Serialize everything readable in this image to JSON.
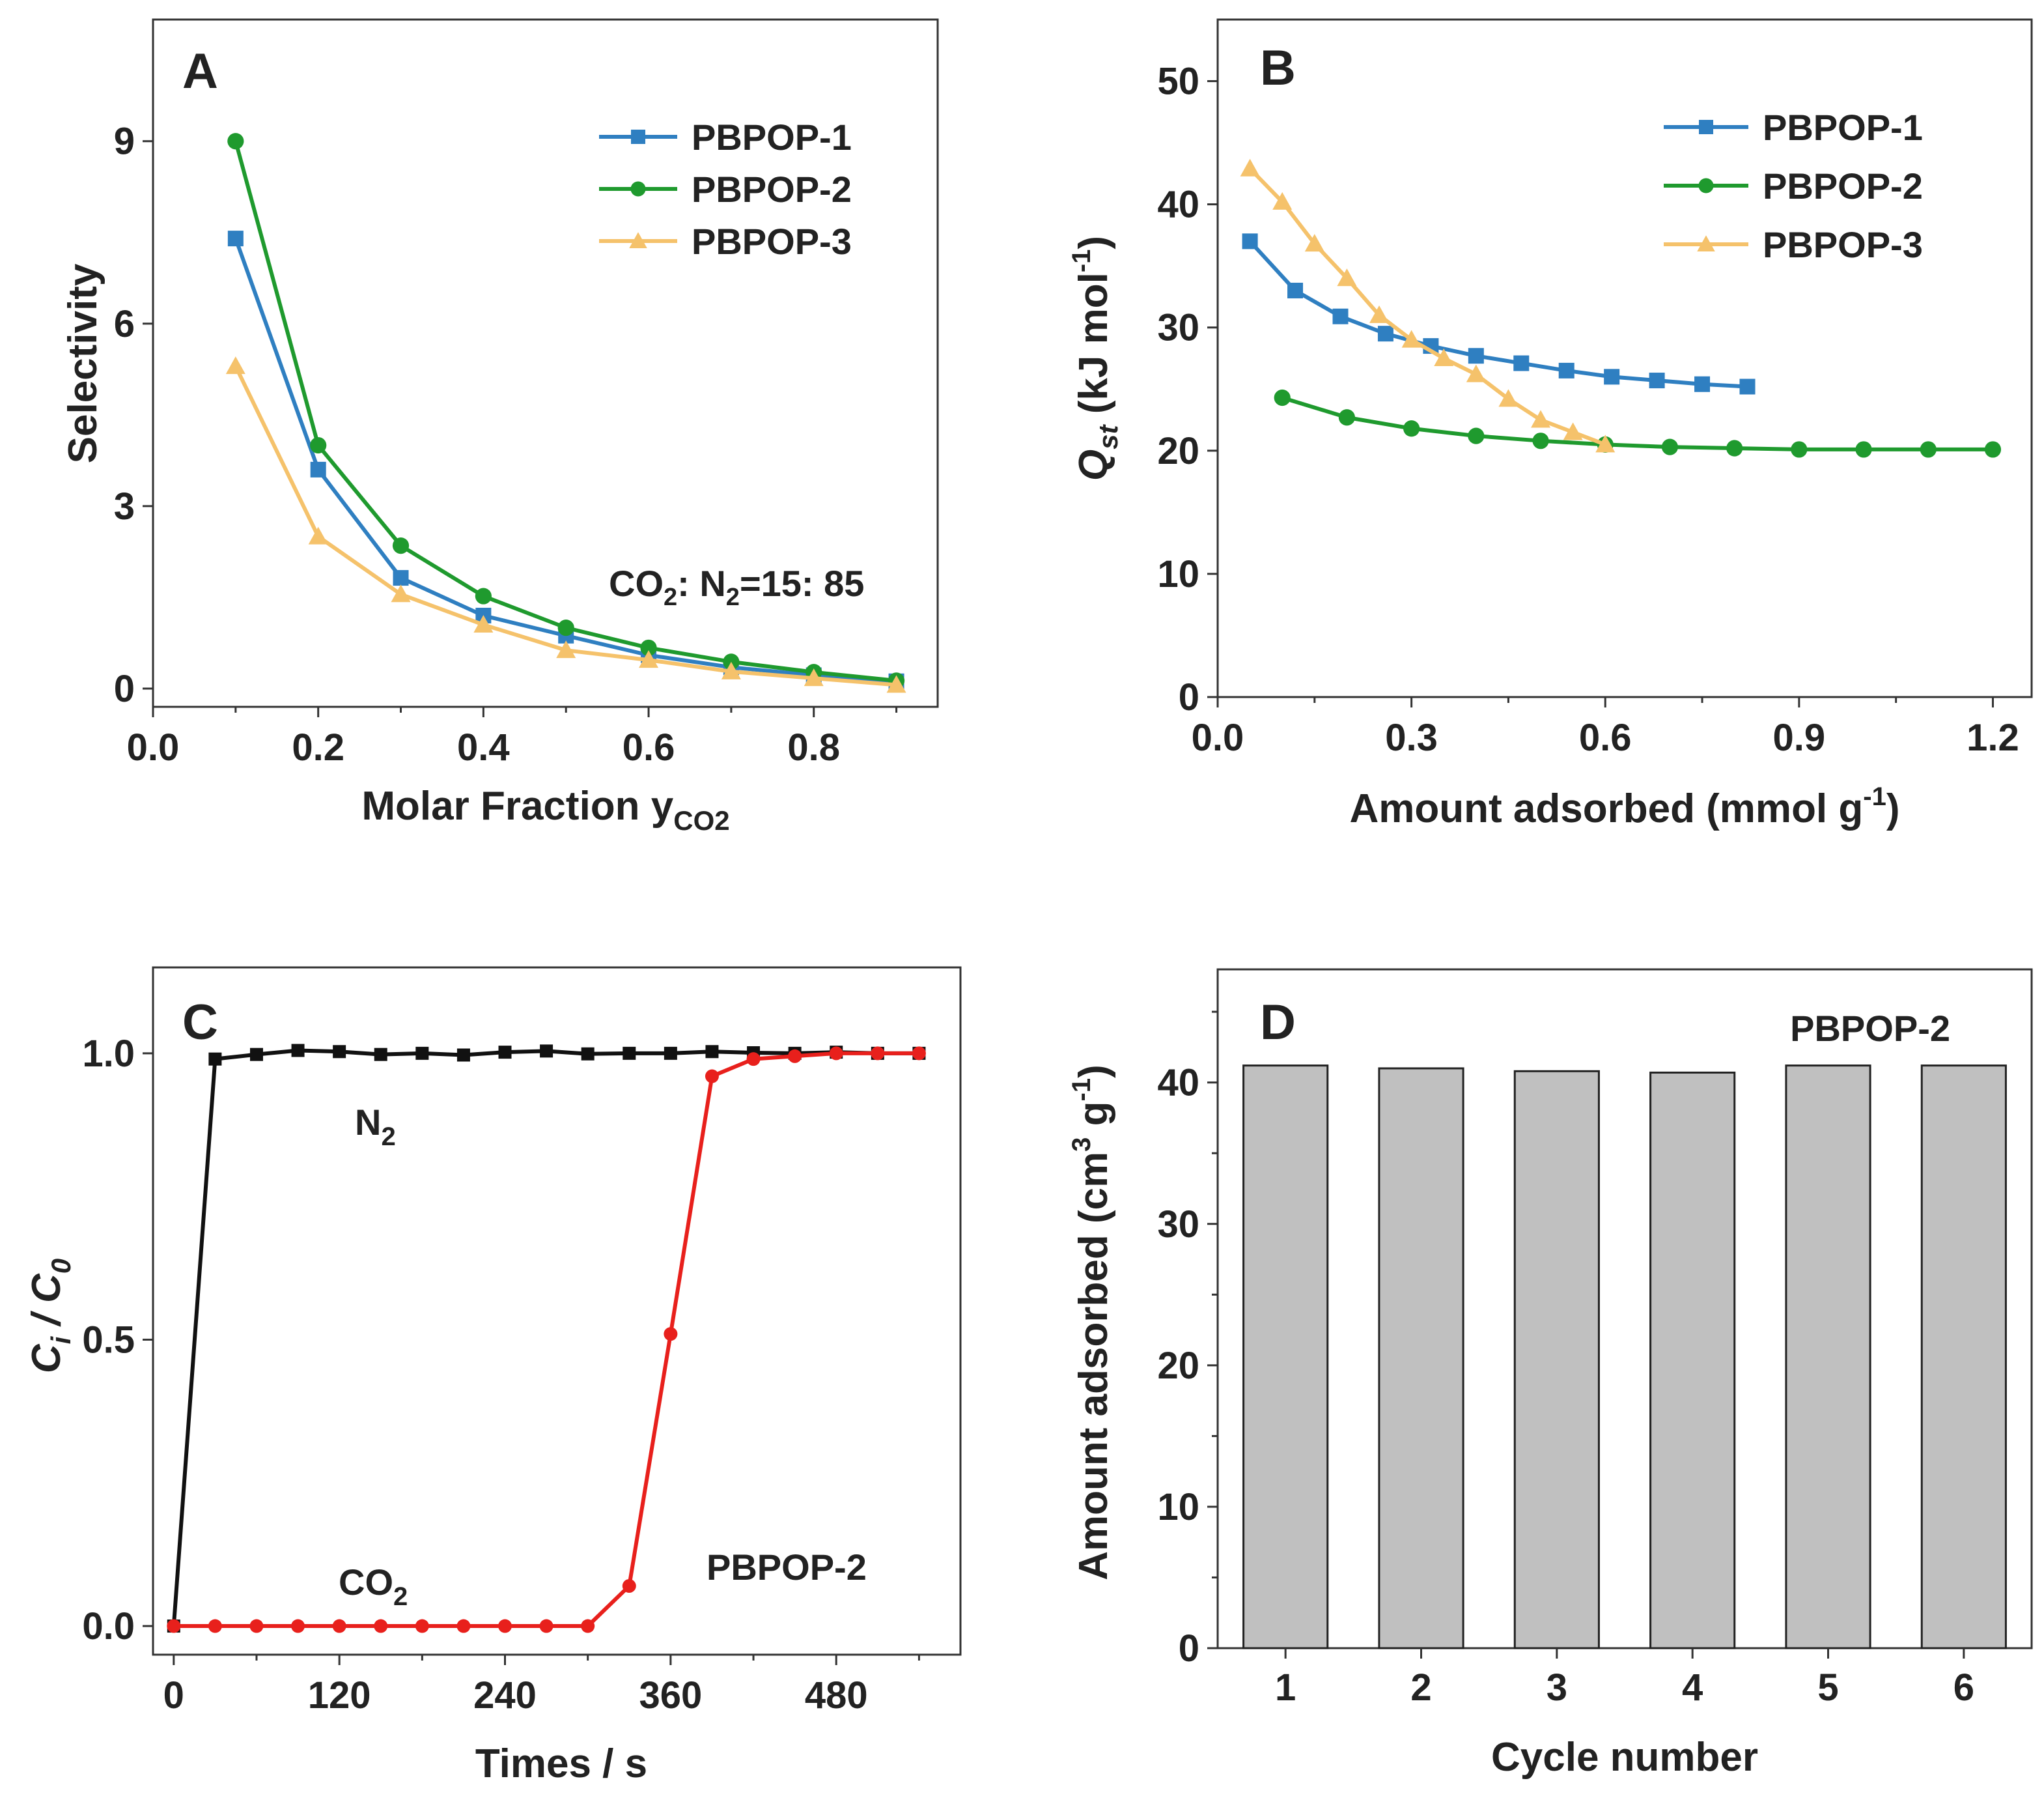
{
  "chart_data": [
    {
      "panel": "A",
      "type": "line",
      "xlabel": "Molar Fraction y",
      "xlabel_sub": "CO2",
      "ylabel": "Selectivity",
      "xlim": [
        0.0,
        0.95
      ],
      "ylim": [
        -0.3,
        11
      ],
      "xticks": [
        "0.0",
        "0.2",
        "0.4",
        "0.6",
        "0.8"
      ],
      "yticks": [
        "0",
        "3",
        "6",
        "9"
      ],
      "legend_position": "top-right",
      "annotation": {
        "p1": "CO",
        "s1": "2",
        "p2": ": N",
        "s2": "2",
        "p3": "=15: 85"
      },
      "x": [
        0.1,
        0.2,
        0.3,
        0.4,
        0.5,
        0.6,
        0.7,
        0.8,
        0.9
      ],
      "series": [
        {
          "name": "PBPOP-1",
          "color": "#2f7fc1",
          "marker": "square",
          "values": [
            7.4,
            3.6,
            1.82,
            1.2,
            0.87,
            0.55,
            0.35,
            0.22,
            0.12
          ]
        },
        {
          "name": "PBPOP-2",
          "color": "#1f9a2e",
          "marker": "circle",
          "values": [
            9.0,
            4.0,
            2.35,
            1.52,
            1.0,
            0.67,
            0.44,
            0.27,
            0.13
          ]
        },
        {
          "name": "PBPOP-3",
          "color": "#f5c26b",
          "marker": "triangle",
          "values": [
            5.3,
            2.5,
            1.55,
            1.05,
            0.63,
            0.47,
            0.28,
            0.17,
            0.06
          ]
        }
      ]
    },
    {
      "panel": "B",
      "type": "line",
      "xlabel": "Amount adsorbed (mmol g",
      "xlabel_sup": "-1",
      "xlabel_end": ")",
      "ylabel_main": "Q",
      "ylabel_sub": "st",
      "ylabel_rest": " (kJ mol",
      "ylabel_sup": "-1",
      "ylabel_end": ")",
      "xlim": [
        0.0,
        1.26
      ],
      "ylim": [
        0,
        55
      ],
      "xticks": [
        "0.0",
        "0.3",
        "0.6",
        "0.9",
        "1.2"
      ],
      "yticks": [
        "0",
        "10",
        "20",
        "30",
        "40",
        "50"
      ],
      "legend_position": "top-right",
      "series": [
        {
          "name": "PBPOP-1",
          "color": "#2f7fc1",
          "marker": "square",
          "x": [
            0.05,
            0.12,
            0.19,
            0.26,
            0.33,
            0.4,
            0.47,
            0.54,
            0.61,
            0.68,
            0.75,
            0.82
          ],
          "values": [
            37.0,
            33.0,
            30.9,
            29.5,
            28.5,
            27.7,
            27.1,
            26.5,
            26.0,
            25.7,
            25.4,
            25.2
          ]
        },
        {
          "name": "PBPOP-2",
          "color": "#1f9a2e",
          "marker": "circle",
          "x": [
            0.1,
            0.2,
            0.3,
            0.4,
            0.5,
            0.6,
            0.7,
            0.8,
            0.9,
            1.0,
            1.1,
            1.2
          ],
          "values": [
            24.3,
            22.7,
            21.8,
            21.2,
            20.8,
            20.5,
            20.3,
            20.2,
            20.1,
            20.1,
            20.1,
            20.1
          ]
        },
        {
          "name": "PBPOP-3",
          "color": "#f5c26b",
          "marker": "triangle",
          "x": [
            0.05,
            0.1,
            0.15,
            0.2,
            0.25,
            0.3,
            0.35,
            0.4,
            0.45,
            0.5,
            0.55,
            0.6
          ],
          "values": [
            42.9,
            40.2,
            36.8,
            34.0,
            31.0,
            29.0,
            27.5,
            26.2,
            24.2,
            22.5,
            21.5,
            20.5
          ]
        }
      ]
    },
    {
      "panel": "C",
      "type": "line",
      "xlabel": "Times / s",
      "ylabel_c": "C",
      "ylabel_i": "i",
      "ylabel_slash": " / C",
      "ylabel_0": "0",
      "xlim": [
        -15,
        570
      ],
      "ylim": [
        -0.05,
        1.15
      ],
      "xticks": [
        "0",
        "120",
        "240",
        "360",
        "480"
      ],
      "yticks": [
        "0.0",
        "0.5",
        "1.0"
      ],
      "label_n2_main": "N",
      "label_n2_sub": "2",
      "label_co2_main": "CO",
      "label_co2_sub": "2",
      "label_sample": "PBPOP-2",
      "series": [
        {
          "name": "N2",
          "color": "#111111",
          "marker": "square",
          "x": [
            0,
            30,
            60,
            90,
            120,
            150,
            180,
            210,
            240,
            270,
            300,
            330,
            360,
            390,
            420,
            450,
            480,
            510,
            540
          ],
          "values": [
            0.0,
            0.99,
            0.998,
            1.005,
            1.003,
            0.998,
            1.0,
            0.997,
            1.002,
            1.004,
            0.999,
            1.0,
            1.0,
            1.003,
            1.001,
            1.0,
            1.002,
            1.0,
            1.0
          ]
        },
        {
          "name": "CO2",
          "color": "#e8201c",
          "marker": "circle",
          "x": [
            0,
            30,
            60,
            90,
            120,
            150,
            180,
            210,
            240,
            270,
            300,
            330,
            360,
            390,
            420,
            450,
            480,
            510,
            540
          ],
          "values": [
            0,
            0,
            0,
            0,
            0,
            0,
            0,
            0,
            0,
            0,
            0,
            0.07,
            0.51,
            0.96,
            0.99,
            0.995,
            1.0,
            1.0,
            1.0
          ]
        }
      ]
    },
    {
      "panel": "D",
      "type": "bar",
      "xlabel": "Cycle number",
      "ylabel": "Amount adsorbed (cm",
      "ylabel_sup": "3",
      "ylabel_mid": " g",
      "ylabel_sup2": "-1",
      "ylabel_end": ")",
      "ylim": [
        0,
        48
      ],
      "yticks": [
        "0",
        "10",
        "20",
        "30",
        "40"
      ],
      "categories": [
        "1",
        "2",
        "3",
        "4",
        "5",
        "6"
      ],
      "values": [
        41.2,
        41.0,
        40.8,
        40.7,
        41.2,
        41.2
      ],
      "bar_color": "#c0c0c0",
      "label_sample": "PBPOP-2"
    }
  ]
}
